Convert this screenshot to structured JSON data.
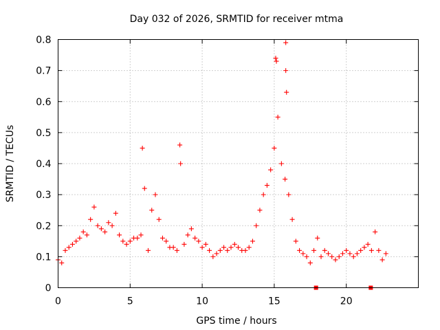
{
  "chart_data": {
    "type": "scatter",
    "title": "Day 032 of 2026, SRMTID for receiver mtma",
    "xlabel": "GPS time / hours",
    "ylabel": "SRMTID / TECUs",
    "xlim": [
      0,
      25
    ],
    "ylim": [
      0,
      0.8
    ],
    "x_ticks": [
      0,
      5,
      10,
      15,
      20
    ],
    "x_tick_labels": [
      "0",
      "5",
      "10",
      "15",
      "20"
    ],
    "y_ticks": [
      0,
      0.1,
      0.2,
      0.3,
      0.4,
      0.5,
      0.6,
      0.7,
      0.8
    ],
    "y_tick_labels": [
      "0",
      "0.1",
      "0.2",
      "0.3",
      "0.4",
      "0.5",
      "0.6",
      "0.7",
      "0.8"
    ],
    "grid": true,
    "marker": "plus",
    "color": "#ff0000",
    "series": [
      {
        "name": "SRMTID",
        "x": [
          0.0,
          0.25,
          0.5,
          0.75,
          1.0,
          1.25,
          1.5,
          1.75,
          2.0,
          2.25,
          2.5,
          2.75,
          3.0,
          3.25,
          3.5,
          3.75,
          4.0,
          4.25,
          4.5,
          4.75,
          5.0,
          5.25,
          5.5,
          5.75,
          6.0,
          6.25,
          6.5,
          6.75,
          7.0,
          7.25,
          7.5,
          7.75,
          8.0,
          8.25,
          8.5,
          8.75,
          9.0,
          9.25,
          9.5,
          9.75,
          10.0,
          10.25,
          10.5,
          10.75,
          11.0,
          11.25,
          11.5,
          11.75,
          12.0,
          12.25,
          12.5,
          12.75,
          13.0,
          13.25,
          13.5,
          13.75,
          14.0,
          14.25,
          14.5,
          14.75,
          15.0,
          15.25,
          15.5,
          15.75,
          16.0,
          16.25,
          16.5,
          16.75,
          17.0,
          17.25,
          17.5,
          17.75,
          18.0,
          18.25,
          18.5,
          18.75,
          19.0,
          19.25,
          19.5,
          19.75,
          20.0,
          20.25,
          20.5,
          20.75,
          21.0,
          21.25,
          21.5,
          21.75,
          22.0,
          22.25,
          22.5,
          22.75
        ],
        "y": [
          0.09,
          0.08,
          0.12,
          0.13,
          0.14,
          0.15,
          0.16,
          0.18,
          0.17,
          0.22,
          0.26,
          0.2,
          0.19,
          0.18,
          0.21,
          0.2,
          0.24,
          0.17,
          0.15,
          0.14,
          0.15,
          0.16,
          0.16,
          0.17,
          0.32,
          0.12,
          0.25,
          0.3,
          0.22,
          0.16,
          0.15,
          0.13,
          0.13,
          0.12,
          0.4,
          0.14,
          0.17,
          0.19,
          0.16,
          0.15,
          0.13,
          0.14,
          0.12,
          0.1,
          0.11,
          0.12,
          0.13,
          0.12,
          0.13,
          0.14,
          0.13,
          0.12,
          0.12,
          0.13,
          0.15,
          0.2,
          0.25,
          0.3,
          0.33,
          0.38,
          0.45,
          0.55,
          0.4,
          0.35,
          0.3,
          0.22,
          0.15,
          0.12,
          0.11,
          0.1,
          0.08,
          0.12,
          0.16,
          0.1,
          0.12,
          0.11,
          0.1,
          0.09,
          0.1,
          0.11,
          0.12,
          0.11,
          0.1,
          0.11,
          0.12,
          0.13,
          0.14,
          0.12,
          0.18,
          0.12,
          0.09,
          0.11
        ]
      }
    ],
    "peak_points": [
      {
        "x": 15.1,
        "y": 0.74
      },
      {
        "x": 15.15,
        "y": 0.73
      },
      {
        "x": 15.8,
        "y": 0.79
      },
      {
        "x": 15.8,
        "y": 0.7
      },
      {
        "x": 15.85,
        "y": 0.63
      },
      {
        "x": 5.85,
        "y": 0.45
      },
      {
        "x": 8.45,
        "y": 0.46
      }
    ],
    "zero_markers": [
      {
        "x": 17.9,
        "y": 0.0
      },
      {
        "x": 21.7,
        "y": 0.0
      }
    ]
  }
}
